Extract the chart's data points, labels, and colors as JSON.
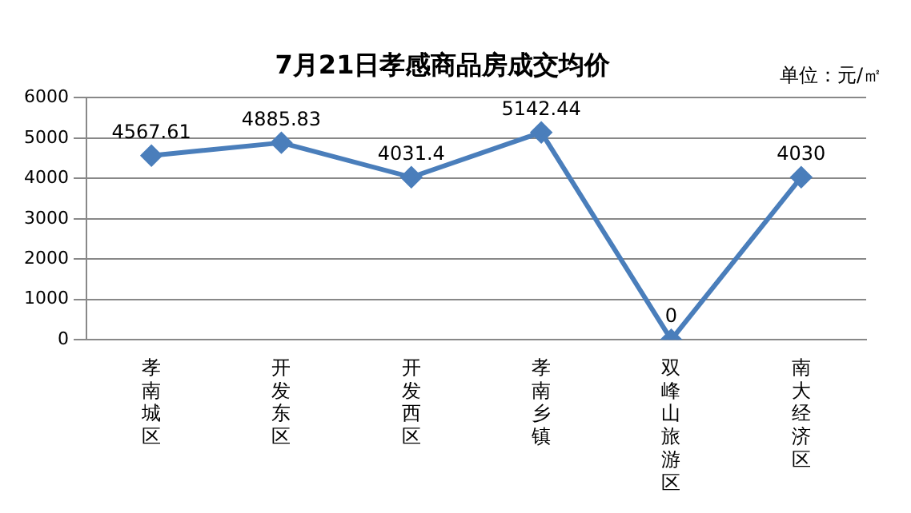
{
  "chart_data": {
    "type": "line",
    "title": "7月21日孝感商品房成交均价",
    "annotations": [
      "单位：元/㎡"
    ],
    "categories": [
      "孝南城区",
      "开发东区",
      "开发西区",
      "孝南乡镇",
      "双峰山旅游区",
      "南大经济区"
    ],
    "series": [
      {
        "color": "#4a7ebb",
        "values": [
          4567.61,
          4885.83,
          4031.4,
          5142.44,
          0,
          4030
        ]
      }
    ],
    "ylim": [
      0,
      6000
    ],
    "yticks": [
      0,
      1000,
      2000,
      3000,
      4000,
      5000,
      6000
    ],
    "grid": "y",
    "legend": false,
    "marker": "diamond",
    "line_style": "solid",
    "data_labels": true
  }
}
